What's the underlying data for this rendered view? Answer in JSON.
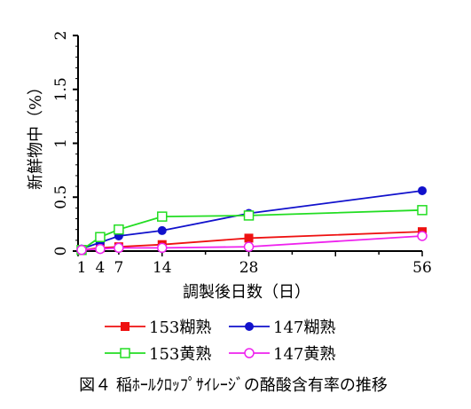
{
  "caption": "図４ 稲ﾎｰﾙｸﾛｯﾌﾟｻｲﾚｰｼﾞの酪酸含有率の推移",
  "chart_data": {
    "type": "line",
    "xlabel": "調製後日数（日）",
    "ylabel": "新鮮物中（%）",
    "xlim": [
      0,
      56
    ],
    "ylim": [
      0,
      2
    ],
    "x_ticks": [
      1,
      4,
      7,
      14,
      28,
      56
    ],
    "x_tick_labels": [
      "1",
      "4",
      "7",
      "14",
      "28",
      "56"
    ],
    "y_ticks": [
      0,
      0.5,
      1,
      1.5,
      2
    ],
    "y_tick_labels": [
      "0",
      "0.5",
      "1",
      "1.5",
      "2"
    ],
    "grid": false,
    "legend_position": "bottom",
    "series": [
      {
        "name": "153糊熟",
        "color": "#ee1111",
        "marker": "filled-square",
        "x": [
          1,
          4,
          7,
          14,
          28,
          56
        ],
        "y": [
          0.01,
          0.03,
          0.04,
          0.06,
          0.12,
          0.18
        ]
      },
      {
        "name": "147糊熟",
        "color": "#1111cc",
        "marker": "filled-circle",
        "x": [
          1,
          4,
          7,
          14,
          28,
          56
        ],
        "y": [
          0.02,
          0.08,
          0.14,
          0.19,
          0.35,
          0.56
        ]
      },
      {
        "name": "153黄熟",
        "color": "#22dd22",
        "marker": "open-square",
        "x": [
          1,
          4,
          7,
          14,
          28,
          56
        ],
        "y": [
          0.01,
          0.13,
          0.2,
          0.32,
          0.33,
          0.38
        ]
      },
      {
        "name": "147黄熟",
        "color": "#ee22ee",
        "marker": "open-circle",
        "x": [
          1,
          4,
          7,
          14,
          28,
          56
        ],
        "y": [
          0.01,
          0.02,
          0.03,
          0.03,
          0.04,
          0.14
        ]
      }
    ]
  }
}
